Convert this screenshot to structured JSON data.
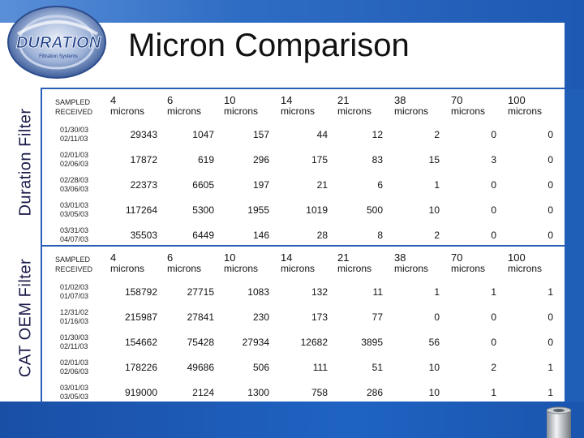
{
  "title": "Micron Comparison",
  "logo": {
    "brand": "DURATION",
    "tagline": "Filtration Systems"
  },
  "sections": [
    {
      "side_label": "Duration Filter",
      "header": {
        "label_line1": "SAMPLED",
        "label_line2": "RECEIVED",
        "columns": [
          {
            "num": "4",
            "unit": "microns"
          },
          {
            "num": "6",
            "unit": "microns"
          },
          {
            "num": "10",
            "unit": "microns"
          },
          {
            "num": "14",
            "unit": "microns"
          },
          {
            "num": "21",
            "unit": "microns"
          },
          {
            "num": "38",
            "unit": "microns"
          },
          {
            "num": "70",
            "unit": "microns"
          },
          {
            "num": "100",
            "unit": "microns"
          }
        ]
      },
      "rows": [
        {
          "sampled": "01/30/03",
          "received": "02/11/03",
          "values": [
            "29343",
            "1047",
            "157",
            "44",
            "12",
            "2",
            "0",
            "0"
          ]
        },
        {
          "sampled": "02/01/03",
          "received": "02/06/03",
          "values": [
            "17872",
            "619",
            "296",
            "175",
            "83",
            "15",
            "3",
            "0"
          ]
        },
        {
          "sampled": "02/28/03",
          "received": "03/06/03",
          "values": [
            "22373",
            "6605",
            "197",
            "21",
            "6",
            "1",
            "0",
            "0"
          ]
        },
        {
          "sampled": "03/01/03",
          "received": "03/05/03",
          "values": [
            "117264",
            "5300",
            "1955",
            "1019",
            "500",
            "10",
            "0",
            "0"
          ]
        },
        {
          "sampled": "03/31/03",
          "received": "04/07/03",
          "values": [
            "35503",
            "6449",
            "146",
            "28",
            "8",
            "2",
            "0",
            "0"
          ]
        }
      ]
    },
    {
      "side_label": "CAT OEM Filter",
      "header": {
        "label_line1": "SAMPLED",
        "label_line2": "RECEIVED",
        "columns": [
          {
            "num": "4",
            "unit": "microns"
          },
          {
            "num": "6",
            "unit": "microns"
          },
          {
            "num": "10",
            "unit": "microns"
          },
          {
            "num": "14",
            "unit": "microns"
          },
          {
            "num": "21",
            "unit": "microns"
          },
          {
            "num": "38",
            "unit": "microns"
          },
          {
            "num": "70",
            "unit": "microns"
          },
          {
            "num": "100",
            "unit": "microns"
          }
        ]
      },
      "rows": [
        {
          "sampled": "01/02/03",
          "received": "01/07/03",
          "values": [
            "158792",
            "27715",
            "1083",
            "132",
            "11",
            "1",
            "1",
            "1"
          ]
        },
        {
          "sampled": "12/31/02",
          "received": "01/16/03",
          "values": [
            "215987",
            "27841",
            "230",
            "173",
            "77",
            "0",
            "0",
            "0"
          ]
        },
        {
          "sampled": "01/30/03",
          "received": "02/11/03",
          "values": [
            "154662",
            "75428",
            "27934",
            "12682",
            "3895",
            "56",
            "0",
            "0"
          ]
        },
        {
          "sampled": "02/01/03",
          "received": "02/06/03",
          "values": [
            "178226",
            "49686",
            "506",
            "111",
            "51",
            "10",
            "2",
            "1"
          ]
        },
        {
          "sampled": "03/01/03",
          "received": "03/05/03",
          "values": [
            "919000",
            "2124",
            "1300",
            "758",
            "286",
            "10",
            "1",
            "1"
          ]
        }
      ]
    }
  ]
}
